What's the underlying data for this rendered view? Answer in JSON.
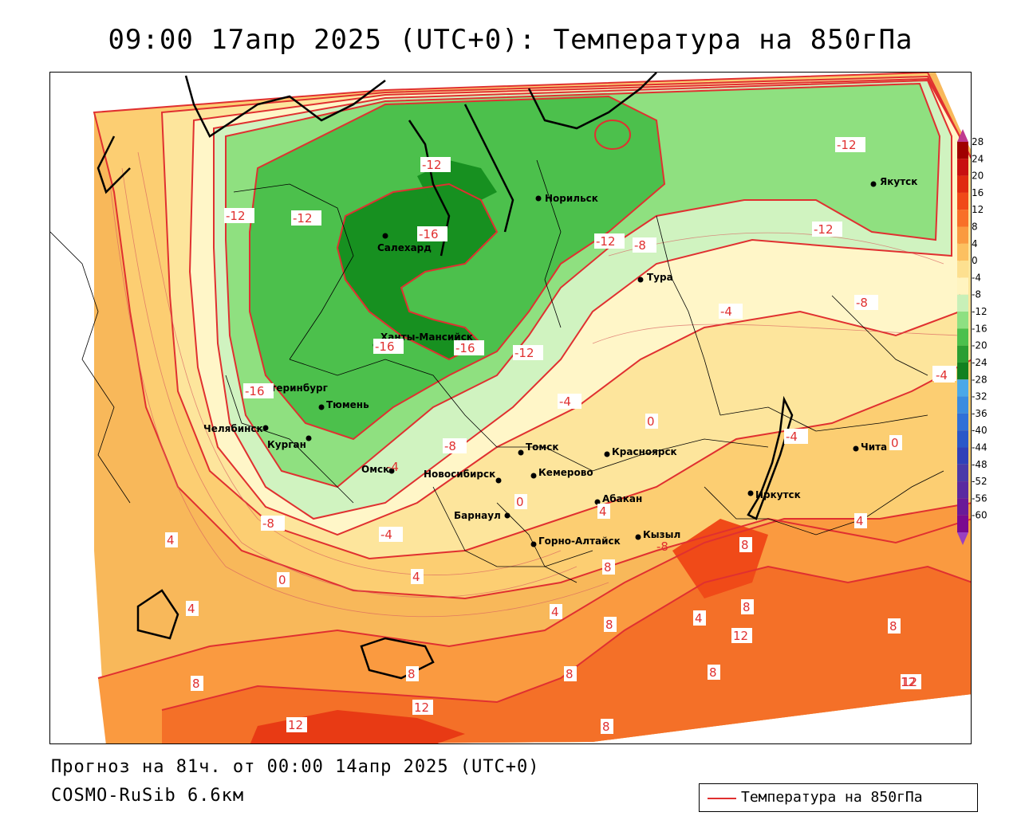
{
  "title": "09:00 17апр 2025 (UTC+0): Температура на 850гПа",
  "footer": {
    "forecast": "Прогноз на 81ч. от 00:00 14апр 2025 (UTC+0)",
    "model": "COSMO-RuSib 6.6км"
  },
  "legend": {
    "label": "Температура на 850гПа",
    "line_color": "#e03030"
  },
  "colorbar": {
    "labels": [
      "28",
      "24",
      "20",
      "16",
      "12",
      "8",
      "4",
      "0",
      "-4",
      "-8",
      "-12",
      "-16",
      "-20",
      "-24",
      "-28",
      "-32",
      "-36",
      "-40",
      "-44",
      "-48",
      "-52",
      "-56",
      "-60"
    ],
    "colors": [
      "#a00000",
      "#c81010",
      "#e02a10",
      "#f04a18",
      "#f87028",
      "#fa9a40",
      "#fcc060",
      "#fde090",
      "#fff4c0",
      "#c8f0b8",
      "#8ee082",
      "#4cc04c",
      "#2a9e32",
      "#138020",
      "#4aa8e8",
      "#3a8ce0",
      "#3070d8",
      "#2a58c8",
      "#3040b8",
      "#4a3aa8",
      "#5a2aa0",
      "#6a1a98",
      "#7a0a90"
    ]
  },
  "cities": [
    {
      "name": "Салехард"
    },
    {
      "name": "Норильск"
    },
    {
      "name": "Якутск"
    },
    {
      "name": "Тура"
    },
    {
      "name": "Ханты-Мансийск"
    },
    {
      "name": "Екатеринбург"
    },
    {
      "name": "Тюмень"
    },
    {
      "name": "Челябинск"
    },
    {
      "name": "Курган"
    },
    {
      "name": "Омск"
    },
    {
      "name": "Томск"
    },
    {
      "name": "Новосибирск"
    },
    {
      "name": "Кемерово"
    },
    {
      "name": "Красноярск"
    },
    {
      "name": "Абакан"
    },
    {
      "name": "Барнаул"
    },
    {
      "name": "Горно-Алтайск"
    },
    {
      "name": "Кызыл"
    },
    {
      "name": "Иркутск"
    },
    {
      "name": "Чита"
    }
  ],
  "isolines": [
    "-12",
    "-16",
    "-12",
    "-12",
    "-16",
    "-16",
    "-16",
    "-12",
    "-12",
    "-12",
    "-12",
    "-8",
    "-8",
    "-4",
    "-4",
    "-8",
    "-4",
    "-4",
    "-8",
    "-4",
    "-8",
    "0",
    "0",
    "0",
    "-4",
    "4",
    "4",
    "0",
    "4",
    "4",
    "8",
    "8",
    "8",
    "8",
    "8",
    "8",
    "12",
    "12",
    "12",
    "4",
    "4",
    "8",
    "4",
    "12",
    "8",
    "8",
    "8",
    "12",
    "-4"
  ]
}
